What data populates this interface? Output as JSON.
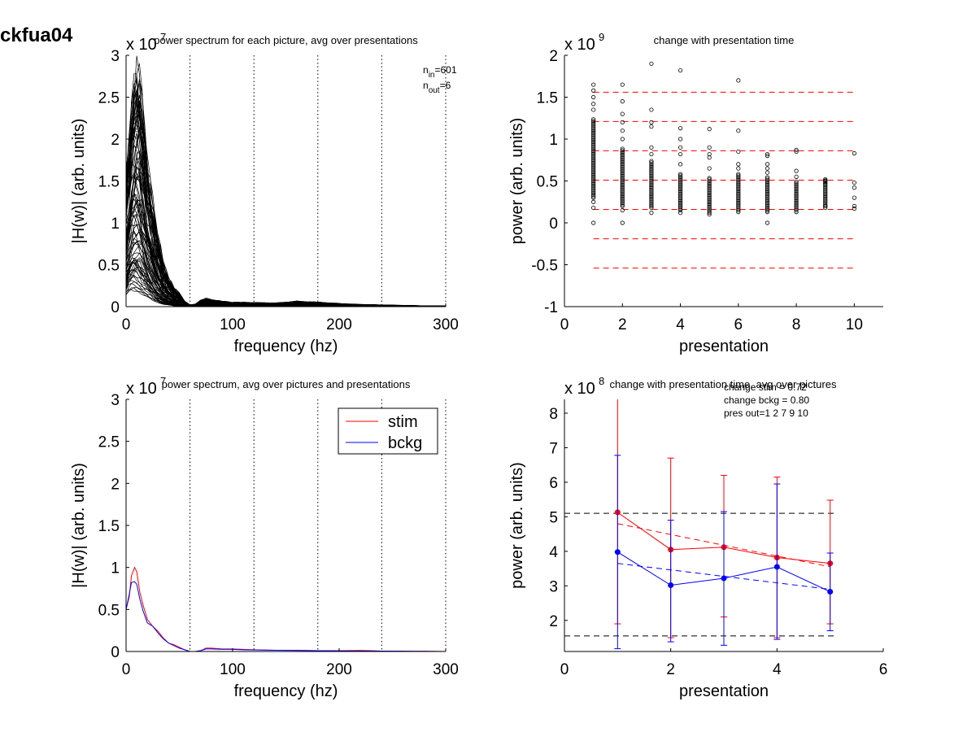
{
  "figure_title": "ckfua04",
  "chart_data": [
    {
      "id": "p1",
      "type": "line",
      "title": "power spectrum for each picture, avg over presentations",
      "xlabel": "frequency (hz)",
      "ylabel": "|H(w)| (arb. units)",
      "xlim": [
        0,
        300
      ],
      "ylim": [
        0,
        3
      ],
      "xticks": [
        "0",
        "100",
        "200",
        "300"
      ],
      "yticks": [
        "0",
        "0.5",
        "1",
        "1.5",
        "2",
        "2.5",
        "3"
      ],
      "y_multiplier": {
        "base": "x 10",
        "exp": "7"
      },
      "vlines": [
        60,
        120,
        180,
        240,
        300
      ],
      "annotation": [
        {
          "main": "n",
          "sub": "in",
          "rest": "=601"
        },
        {
          "main": "n",
          "sub": "out",
          "rest": "=6"
        }
      ],
      "envelope": {
        "x": [
          0,
          3,
          6,
          9,
          12,
          15,
          20,
          25,
          30,
          35,
          40,
          45,
          50,
          55,
          60,
          65,
          70,
          75,
          80,
          90,
          100,
          120,
          140,
          160,
          180,
          200,
          220,
          240,
          260,
          280,
          300
        ],
        "upper": [
          1.5,
          1.9,
          2.5,
          2.78,
          2.72,
          2.3,
          1.6,
          1.2,
          0.8,
          0.5,
          0.32,
          0.22,
          0.15,
          0.06,
          0.02,
          0.03,
          0.07,
          0.09,
          0.08,
          0.06,
          0.05,
          0.045,
          0.04,
          0.06,
          0.05,
          0.035,
          0.025,
          0.02,
          0.015,
          0.01,
          0.008
        ],
        "lower": [
          0.15,
          0.2,
          0.2,
          0.2,
          0.18,
          0.16,
          0.12,
          0.08,
          0.05,
          0.03,
          0.02,
          0.01,
          0.005,
          0.0,
          0.0,
          0.0,
          0.005,
          0.01,
          0.01,
          0.01,
          0.008,
          0.008,
          0.006,
          0.006,
          0.005,
          0.004,
          0.003,
          0.002,
          0.001,
          0.001,
          0.0
        ]
      },
      "line_count": 90
    },
    {
      "id": "p2",
      "type": "scatter",
      "title": "change with presentation time",
      "xlabel": "presentation",
      "ylabel": "power (arb. units)",
      "xlim": [
        0,
        11
      ],
      "ylim": [
        -1,
        2
      ],
      "xticks": [
        "0",
        "2",
        "4",
        "6",
        "8",
        "10"
      ],
      "yticks": [
        "-1",
        "-0.5",
        "0",
        "0.5",
        "1",
        "1.5",
        "2"
      ],
      "y_multiplier": {
        "base": "x 10",
        "exp": "9"
      },
      "hlines": [
        1.56,
        1.21,
        0.86,
        0.51,
        0.16,
        -0.19,
        -0.54
      ],
      "hline_x": [
        1,
        10
      ],
      "columns": [
        {
          "x": 1,
          "dense": [
            0.3,
            1.25
          ],
          "outliers": [
            1.65,
            1.58,
            1.5,
            1.42,
            1.35,
            0.25,
            0.18,
            0.0
          ]
        },
        {
          "x": 2,
          "dense": [
            0.2,
            0.9
          ],
          "outliers": [
            1.65,
            1.45,
            1.3,
            1.2,
            1.1,
            1.0,
            0.15,
            0.0
          ]
        },
        {
          "x": 3,
          "dense": [
            0.18,
            0.75
          ],
          "outliers": [
            1.9,
            1.35,
            1.2,
            1.15,
            0.9,
            0.82,
            0.12
          ]
        },
        {
          "x": 4,
          "dense": [
            0.15,
            0.6
          ],
          "outliers": [
            1.82,
            1.13,
            1.0,
            0.9,
            0.82,
            0.7,
            0.12
          ]
        },
        {
          "x": 5,
          "dense": [
            0.12,
            0.55
          ],
          "outliers": [
            1.12,
            0.9,
            0.82,
            0.78,
            0.65,
            0.1
          ]
        },
        {
          "x": 6,
          "dense": [
            0.15,
            0.6
          ],
          "outliers": [
            1.7,
            1.1,
            0.85,
            0.7,
            0.65,
            0.13
          ]
        },
        {
          "x": 7,
          "dense": [
            0.13,
            0.55
          ],
          "outliers": [
            0.82,
            0.8,
            0.7,
            0.65,
            0.6,
            0.0
          ]
        },
        {
          "x": 8,
          "dense": [
            0.15,
            0.5
          ],
          "outliers": [
            0.87,
            0.85,
            0.62,
            0.55,
            0.13
          ]
        },
        {
          "x": 9,
          "dense": [
            0.2,
            0.52
          ],
          "outliers": [
            0.52,
            0.5,
            0.47,
            0.2,
            0.18
          ]
        },
        {
          "x": 10,
          "dense": null,
          "outliers": [
            0.83,
            0.48,
            0.42,
            0.3,
            0.2,
            0.17
          ]
        }
      ]
    },
    {
      "id": "p3",
      "type": "line",
      "title": "power spectrum, avg over pictures and presentations",
      "xlabel": "frequency (hz)",
      "ylabel": "|H(w)| (arb. units)",
      "xlim": [
        0,
        300
      ],
      "ylim": [
        0,
        3
      ],
      "xticks": [
        "0",
        "100",
        "200",
        "300"
      ],
      "yticks": [
        "0",
        "0.5",
        "1",
        "1.5",
        "2",
        "2.5",
        "3"
      ],
      "y_multiplier": {
        "base": "x 10",
        "exp": "7"
      },
      "vlines": [
        60,
        120,
        180,
        240,
        300
      ],
      "legend": {
        "placement": "top-right"
      },
      "series": [
        {
          "name": "stim",
          "color": "#ff0000",
          "x": [
            0,
            3,
            5,
            8,
            10,
            13,
            16,
            20,
            25,
            30,
            35,
            40,
            45,
            50,
            55,
            60,
            65,
            70,
            75,
            80,
            90,
            100,
            110,
            120,
            140,
            160,
            180,
            200,
            220,
            230,
            240,
            260,
            280,
            300
          ],
          "y": [
            0.5,
            0.65,
            0.9,
            1.0,
            0.95,
            0.7,
            0.55,
            0.38,
            0.3,
            0.24,
            0.16,
            0.1,
            0.08,
            0.05,
            0.02,
            0.0,
            0.0,
            0.01,
            0.04,
            0.04,
            0.03,
            0.03,
            0.025,
            0.02,
            0.015,
            0.015,
            0.01,
            0.01,
            0.012,
            0.01,
            0.005,
            0.004,
            0.002,
            0.0
          ]
        },
        {
          "name": "bckg",
          "color": "#0000ff",
          "x": [
            0,
            3,
            5,
            8,
            10,
            13,
            16,
            20,
            25,
            30,
            35,
            40,
            45,
            50,
            55,
            60,
            65,
            70,
            75,
            80,
            90,
            100,
            110,
            120,
            140,
            160,
            180,
            200,
            220,
            240,
            260,
            280,
            300
          ],
          "y": [
            0.5,
            0.68,
            0.82,
            0.83,
            0.8,
            0.62,
            0.48,
            0.34,
            0.3,
            0.22,
            0.15,
            0.1,
            0.07,
            0.04,
            0.02,
            0.0,
            0.0,
            0.01,
            0.03,
            0.03,
            0.025,
            0.025,
            0.02,
            0.018,
            0.015,
            0.012,
            0.01,
            0.008,
            0.006,
            0.005,
            0.004,
            0.002,
            0.0
          ]
        }
      ]
    },
    {
      "id": "p4",
      "type": "line",
      "title": "change with presentation time, avg over pictures",
      "xlabel": "presentation",
      "ylabel": "power (arb. units)",
      "xlim": [
        0,
        6
      ],
      "ylim": [
        1.1,
        8.4
      ],
      "xticks": [
        "0",
        "2",
        "4",
        "6"
      ],
      "yticks": [
        "2",
        "3",
        "4",
        "5",
        "6",
        "7",
        "8"
      ],
      "y_multiplier": {
        "base": "x 10",
        "exp": "8"
      },
      "annotation": [
        "change stim = 0.72",
        "change bckg = 0.80",
        "pres out=1 2 7 9 10"
      ],
      "hlines": [
        5.1,
        1.55
      ],
      "hline_x": [
        0,
        5.1
      ],
      "series": [
        {
          "name": "stim",
          "color": "#ff0000",
          "x": [
            1,
            2,
            3,
            4,
            5
          ],
          "y": [
            5.13,
            4.05,
            4.12,
            3.82,
            3.65
          ],
          "err_low": [
            1.9,
            1.5,
            2.1,
            1.5,
            1.9
          ],
          "err_high": [
            8.4,
            6.7,
            6.2,
            6.15,
            5.48
          ],
          "fit": [
            [
              1,
              4.8
            ],
            [
              5,
              3.55
            ]
          ]
        },
        {
          "name": "bckg",
          "color": "#0000ff",
          "x": [
            1,
            2,
            3,
            4,
            5
          ],
          "y": [
            3.98,
            3.02,
            3.22,
            3.55,
            2.83
          ],
          "err_low": [
            1.18,
            1.38,
            1.28,
            1.45,
            1.7
          ],
          "err_high": [
            6.78,
            4.9,
            5.15,
            5.95,
            3.95
          ],
          "fit": [
            [
              1,
              3.65
            ],
            [
              5,
              2.9
            ]
          ]
        }
      ]
    }
  ]
}
